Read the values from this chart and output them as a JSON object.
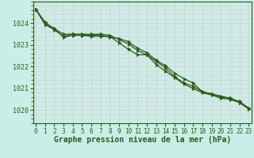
{
  "xlabel": "Graphe pression niveau de la mer (hPa)",
  "x": [
    0,
    1,
    2,
    3,
    4,
    5,
    6,
    7,
    8,
    9,
    10,
    11,
    12,
    13,
    14,
    15,
    16,
    17,
    18,
    19,
    20,
    21,
    22,
    23
  ],
  "line1": [
    1024.65,
    1023.95,
    1023.75,
    1023.35,
    1023.45,
    1023.45,
    1023.45,
    1023.45,
    1023.35,
    1023.3,
    1023.15,
    1022.85,
    1022.65,
    1022.3,
    1022.05,
    1021.7,
    1021.45,
    1021.25,
    1020.85,
    1020.75,
    1020.65,
    1020.55,
    1020.35,
    1020.1
  ],
  "line2": [
    1024.65,
    1024.05,
    1023.75,
    1023.5,
    1023.5,
    1023.5,
    1023.5,
    1023.5,
    1023.45,
    1023.25,
    1023.05,
    1022.75,
    1022.55,
    1022.25,
    1021.95,
    1021.55,
    1021.25,
    1021.1,
    1020.85,
    1020.75,
    1020.6,
    1020.55,
    1020.4,
    1020.1
  ],
  "line3": [
    1024.65,
    1023.95,
    1023.7,
    1023.4,
    1023.5,
    1023.45,
    1023.4,
    1023.4,
    1023.4,
    1023.1,
    1022.8,
    1022.55,
    1022.55,
    1022.1,
    1021.8,
    1021.5,
    1021.2,
    1021.0,
    1020.8,
    1020.7,
    1020.55,
    1020.5,
    1020.35,
    1020.05
  ],
  "line_color": "#2d5a1b",
  "bg_color": "#c8eee8",
  "grid_color": "#e8c8c8",
  "ylabel_ticks": [
    1020,
    1021,
    1022,
    1023,
    1024
  ],
  "ylim": [
    1019.4,
    1025.0
  ],
  "xlim": [
    -0.3,
    23.3
  ]
}
